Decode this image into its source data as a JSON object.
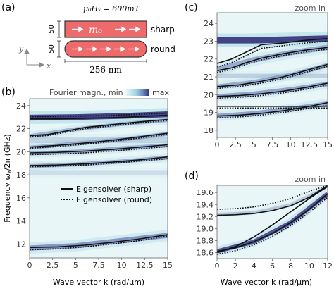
{
  "panel_a": {
    "label": "(a)",
    "field_label": "μ₀Hₓ = 600mT",
    "magnetization_label": "m₀",
    "shape_sharp": "sharp",
    "shape_round": "round",
    "height_top": "50",
    "height_bottom": "50",
    "width_label": "256 nm",
    "axis_y": "y",
    "axis_x": "x"
  },
  "colors": {
    "strip_fill": "#ef6b6b",
    "strip_edge": "#333333",
    "cmap_low": "#e8f6f8",
    "cmap_mid": "#9ad0df",
    "cmap_high": "#3a3a78",
    "line": "#111111"
  },
  "chart_data": [
    {
      "id": "b",
      "type": "line",
      "panel_label": "(b)",
      "colorbar": {
        "label_min": "Fourier magn., min",
        "label_max": "max"
      },
      "xlabel": "Wave vector k (rad/µm)",
      "ylabel": "Frequency ωᵧ/2π (GHz)",
      "xlim": [
        0,
        15
      ],
      "ylim": [
        10.8,
        24.6
      ],
      "xticks": [
        "0",
        "2.5",
        "5",
        "7.5",
        "10",
        "12.5",
        "15"
      ],
      "yticks": [
        "12",
        "14",
        "16",
        "18",
        "20",
        "22",
        "24"
      ],
      "legend": [
        {
          "label": "Eigensolver (sharp)",
          "style": "solid"
        },
        {
          "label": "Eigensolver (round)",
          "style": "dotted"
        }
      ],
      "series": [
        {
          "style": "solid",
          "x": [
            0,
            3,
            6,
            9,
            12,
            15
          ],
          "y": [
            11.7,
            11.75,
            11.9,
            12.15,
            12.45,
            12.8
          ]
        },
        {
          "style": "dotted",
          "x": [
            0,
            3,
            6,
            9,
            12,
            15
          ],
          "y": [
            11.5,
            11.58,
            11.75,
            12.0,
            12.3,
            12.7
          ]
        },
        {
          "style": "solid",
          "x": [
            0,
            3,
            6,
            9,
            12,
            15
          ],
          "y": [
            18.8,
            18.85,
            18.95,
            19.1,
            19.3,
            19.55
          ]
        },
        {
          "style": "dotted",
          "x": [
            0,
            3,
            6,
            9,
            12,
            15
          ],
          "y": [
            18.7,
            18.75,
            18.85,
            19.0,
            19.2,
            19.4
          ]
        },
        {
          "style": "solid",
          "x": [
            0,
            3,
            6,
            9,
            12,
            15
          ],
          "y": [
            19.9,
            19.95,
            20.05,
            20.2,
            20.4,
            20.6
          ]
        },
        {
          "style": "dotted",
          "x": [
            0,
            3,
            6,
            9,
            12,
            15
          ],
          "y": [
            19.75,
            19.8,
            19.9,
            20.05,
            20.25,
            20.45
          ]
        },
        {
          "style": "solid",
          "x": [
            0,
            3,
            6,
            9,
            12,
            15
          ],
          "y": [
            20.4,
            20.55,
            20.75,
            21.0,
            21.3,
            21.6
          ]
        },
        {
          "style": "dotted",
          "x": [
            0,
            3,
            6,
            9,
            12,
            15
          ],
          "y": [
            20.3,
            20.45,
            20.65,
            20.9,
            21.2,
            21.5
          ]
        },
        {
          "style": "solid",
          "x": [
            0,
            2,
            4,
            6,
            9,
            12,
            15
          ],
          "y": [
            21.4,
            21.5,
            21.8,
            22.1,
            22.35,
            22.6,
            22.8
          ]
        },
        {
          "style": "dotted",
          "x": [
            0,
            2,
            4,
            6,
            9,
            12,
            15
          ],
          "y": [
            21.3,
            21.4,
            21.7,
            22.0,
            22.25,
            22.5,
            22.7
          ]
        },
        {
          "style": "solid",
          "x": [
            0,
            3,
            6,
            9,
            12,
            15
          ],
          "y": [
            22.85,
            22.85,
            22.9,
            22.95,
            23.05,
            23.15
          ]
        },
        {
          "style": "dotted",
          "x": [
            0,
            3,
            6,
            9,
            12,
            15
          ],
          "y": [
            23.05,
            23.05,
            23.1,
            23.15,
            23.25,
            23.35
          ]
        }
      ],
      "bands": [
        {
          "x": [
            0,
            5,
            10,
            15
          ],
          "y": [
            11.65,
            11.85,
            12.3,
            12.75
          ],
          "w": 0.45,
          "a": 0.65
        },
        {
          "x": [
            0,
            5,
            10,
            15
          ],
          "y": [
            18.75,
            18.9,
            19.15,
            19.5
          ],
          "w": 0.35,
          "a": 0.5
        },
        {
          "x": [
            0,
            5,
            10,
            15
          ],
          "y": [
            19.85,
            20.0,
            20.3,
            20.55
          ],
          "w": 0.35,
          "a": 0.5
        },
        {
          "x": [
            0,
            5,
            10,
            15
          ],
          "y": [
            20.35,
            20.7,
            21.05,
            21.55
          ],
          "w": 0.35,
          "a": 0.45
        },
        {
          "x": [
            0,
            5,
            10,
            15
          ],
          "y": [
            21.35,
            21.95,
            22.4,
            22.75
          ],
          "w": 0.35,
          "a": 0.45
        },
        {
          "x": [
            0,
            5,
            10,
            15
          ],
          "y": [
            22.95,
            23.0,
            23.1,
            23.25
          ],
          "w": 0.5,
          "a": 0.95
        },
        {
          "x": [
            0,
            5,
            10,
            15
          ],
          "y": [
            21.0,
            21.0,
            21.0,
            21.0
          ],
          "w": 0.5,
          "a": 0.2
        },
        {
          "x": [
            0,
            5,
            10,
            15
          ],
          "y": [
            18.2,
            18.2,
            18.2,
            18.2
          ],
          "w": 0.4,
          "a": 0.15
        }
      ]
    },
    {
      "id": "c",
      "type": "line",
      "panel_label": "(c)",
      "annotation": "zoom in",
      "xlim": [
        0,
        15
      ],
      "ylim": [
        17.6,
        24.6
      ],
      "xticks": [
        "0",
        "2.5",
        "5",
        "7.5",
        "10",
        "12.5",
        "15"
      ],
      "yticks": [
        "18",
        "19",
        "20",
        "21",
        "22",
        "23",
        "24"
      ],
      "series": [
        {
          "style": "solid",
          "x": [
            0,
            3,
            6,
            9,
            12,
            15
          ],
          "y": [
            18.8,
            18.85,
            18.95,
            19.1,
            19.3,
            19.55
          ]
        },
        {
          "style": "dotted",
          "x": [
            0,
            3,
            6,
            9,
            12,
            15
          ],
          "y": [
            18.7,
            18.75,
            18.85,
            19.0,
            19.2,
            19.4
          ]
        },
        {
          "style": "solid",
          "x": [
            0,
            3,
            6,
            9,
            12,
            15
          ],
          "y": [
            19.35,
            19.35,
            19.35,
            19.35,
            19.35,
            19.35
          ]
        },
        {
          "style": "dotted",
          "x": [
            0,
            3,
            6,
            9,
            12,
            15
          ],
          "y": [
            19.25,
            19.25,
            19.25,
            19.25,
            19.25,
            19.25
          ]
        },
        {
          "style": "solid",
          "x": [
            0,
            3,
            6,
            9,
            12,
            15
          ],
          "y": [
            19.9,
            19.95,
            20.05,
            20.2,
            20.4,
            20.65
          ]
        },
        {
          "style": "dotted",
          "x": [
            0,
            3,
            6,
            9,
            12,
            15
          ],
          "y": [
            19.8,
            19.85,
            19.95,
            20.1,
            20.3,
            20.55
          ]
        },
        {
          "style": "solid",
          "x": [
            0,
            3,
            6,
            9,
            12,
            15
          ],
          "y": [
            20.45,
            20.55,
            20.75,
            21.0,
            21.35,
            21.7
          ]
        },
        {
          "style": "dotted",
          "x": [
            0,
            3,
            6,
            9,
            12,
            15
          ],
          "y": [
            20.35,
            20.45,
            20.65,
            20.9,
            21.25,
            21.6
          ]
        },
        {
          "style": "solid",
          "x": [
            0,
            2,
            4,
            6,
            9,
            12,
            15
          ],
          "y": [
            21.35,
            21.5,
            21.8,
            22.05,
            22.3,
            22.5,
            22.65
          ]
        },
        {
          "style": "dotted",
          "x": [
            0,
            2,
            4,
            6,
            9,
            12,
            15
          ],
          "y": [
            21.25,
            21.4,
            21.7,
            21.95,
            22.2,
            22.4,
            22.55
          ]
        },
        {
          "style": "solid",
          "x": [
            0,
            2,
            4,
            6,
            9,
            12,
            15
          ],
          "y": [
            21.75,
            22.0,
            22.4,
            22.8,
            22.9,
            23.05,
            23.15
          ]
        },
        {
          "style": "dotted",
          "x": [
            0,
            2,
            4,
            6,
            9,
            12,
            15
          ],
          "y": [
            21.55,
            21.8,
            22.2,
            22.6,
            22.75,
            22.9,
            23.0
          ]
        }
      ],
      "bands": [
        {
          "x": [
            0,
            5,
            10,
            15
          ],
          "y": [
            18.8,
            18.95,
            19.2,
            19.5
          ],
          "w": 0.25,
          "a": 0.55
        },
        {
          "x": [
            0,
            5,
            10,
            15
          ],
          "y": [
            19.9,
            20.05,
            20.3,
            20.6
          ],
          "w": 0.25,
          "a": 0.55
        },
        {
          "x": [
            0,
            5,
            10,
            15
          ],
          "y": [
            20.45,
            20.7,
            21.1,
            21.65
          ],
          "w": 0.25,
          "a": 0.5
        },
        {
          "x": [
            0,
            5,
            10,
            15
          ],
          "y": [
            21.4,
            21.95,
            22.35,
            22.65
          ],
          "w": 0.3,
          "a": 0.5
        },
        {
          "x": [
            0,
            5,
            10,
            15
          ],
          "y": [
            23.05,
            23.05,
            23.1,
            23.15
          ],
          "w": 0.35,
          "a": 0.95
        },
        {
          "x": [
            0,
            5,
            10,
            15
          ],
          "y": [
            21.05,
            21.05,
            21.05,
            21.05
          ],
          "w": 0.25,
          "a": 0.25
        }
      ]
    },
    {
      "id": "d",
      "type": "line",
      "panel_label": "(d)",
      "annotation": "zoom in",
      "xlabel": "Wave vector k (rad/µm)",
      "xlim": [
        0,
        12
      ],
      "ylim": [
        18.5,
        19.72
      ],
      "xticks": [
        "0",
        "2",
        "4",
        "6",
        "8",
        "10",
        "12"
      ],
      "yticks": [
        "18.6",
        "18.8",
        "19.0",
        "19.2",
        "19.4",
        "19.6"
      ],
      "series": [
        {
          "style": "solid",
          "x": [
            0,
            2,
            4,
            6,
            8,
            10,
            12
          ],
          "y": [
            18.62,
            18.68,
            18.78,
            18.92,
            19.1,
            19.32,
            19.58
          ]
        },
        {
          "style": "dotted",
          "x": [
            0,
            2,
            4,
            6,
            8,
            10,
            12
          ],
          "y": [
            18.57,
            18.63,
            18.73,
            18.87,
            19.05,
            19.27,
            19.52
          ]
        },
        {
          "style": "solid",
          "x": [
            0,
            2,
            4,
            6,
            8,
            10,
            12
          ],
          "y": [
            19.22,
            19.23,
            19.25,
            19.3,
            19.38,
            19.52,
            19.72
          ]
        },
        {
          "style": "dotted",
          "x": [
            0,
            2,
            4,
            6,
            8,
            10,
            12
          ],
          "y": [
            19.32,
            19.33,
            19.36,
            19.42,
            19.5,
            19.62,
            19.72
          ]
        },
        {
          "style": "solid",
          "x": [
            0,
            2,
            4,
            6,
            8,
            10,
            12
          ],
          "y": [
            18.6,
            18.7,
            18.86,
            19.06,
            19.28,
            19.5,
            19.7
          ]
        }
      ],
      "bands": [
        {
          "x": [
            0,
            4,
            8,
            12
          ],
          "y": [
            18.62,
            18.78,
            19.1,
            19.58
          ],
          "w": 0.07,
          "a": 0.85
        },
        {
          "x": [
            0,
            4,
            8,
            12
          ],
          "y": [
            19.24,
            19.27,
            19.4,
            19.7
          ],
          "w": 0.04,
          "a": 0.3
        }
      ]
    }
  ]
}
